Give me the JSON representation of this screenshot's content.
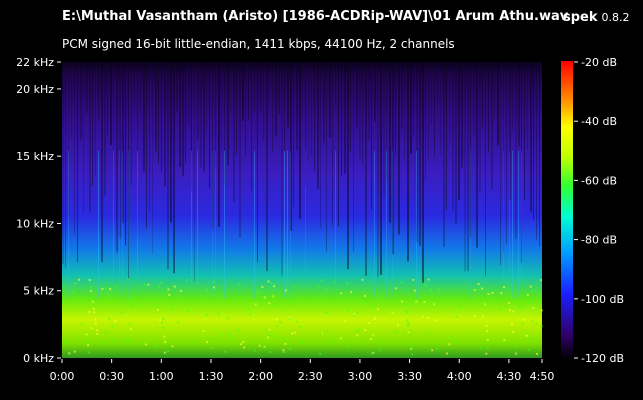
{
  "header": {
    "file_path": "E:\\Muthal Vasantham (Aristo) [1986-ACDRip-WAV]\\01 Arum Athu.wav",
    "audio_info": "PCM signed 16-bit little-endian, 1411 kbps, 44100 Hz, 2 channels",
    "app_name": "spek",
    "app_version": "0.8.2"
  },
  "frequency_axis": {
    "ticks": [
      {
        "label": "22 kHz",
        "value": 22
      },
      {
        "label": "20 kHz",
        "value": 20
      },
      {
        "label": "15 kHz",
        "value": 15
      },
      {
        "label": "10 kHz",
        "value": 10
      },
      {
        "label": "5 kHz",
        "value": 5
      },
      {
        "label": "0 kHz",
        "value": 0
      }
    ],
    "max_khz": 22
  },
  "time_axis": {
    "ticks": [
      {
        "label": "0:00",
        "seconds": 0
      },
      {
        "label": "0:30",
        "seconds": 30
      },
      {
        "label": "1:00",
        "seconds": 60
      },
      {
        "label": "1:30",
        "seconds": 90
      },
      {
        "label": "2:00",
        "seconds": 120
      },
      {
        "label": "2:30",
        "seconds": 150
      },
      {
        "label": "3:00",
        "seconds": 180
      },
      {
        "label": "3:30",
        "seconds": 210
      },
      {
        "label": "4:00",
        "seconds": 240
      },
      {
        "label": "4:30",
        "seconds": 270
      },
      {
        "label": "4:50",
        "seconds": 290
      }
    ],
    "duration_seconds": 290
  },
  "db_scale": {
    "ticks": [
      {
        "label": "-20 dB",
        "value": -20
      },
      {
        "label": "-40 dB",
        "value": -40
      },
      {
        "label": "-60 dB",
        "value": -60
      },
      {
        "label": "-80 dB",
        "value": -80
      },
      {
        "label": "-100 dB",
        "value": -100
      },
      {
        "label": "-120 dB",
        "value": -120
      }
    ],
    "colors": [
      "#ffffff",
      "#ff0000",
      "#ff8000",
      "#ffff00",
      "#00ff00",
      "#00ffff",
      "#0000ff",
      "#300070",
      "#000000"
    ]
  }
}
